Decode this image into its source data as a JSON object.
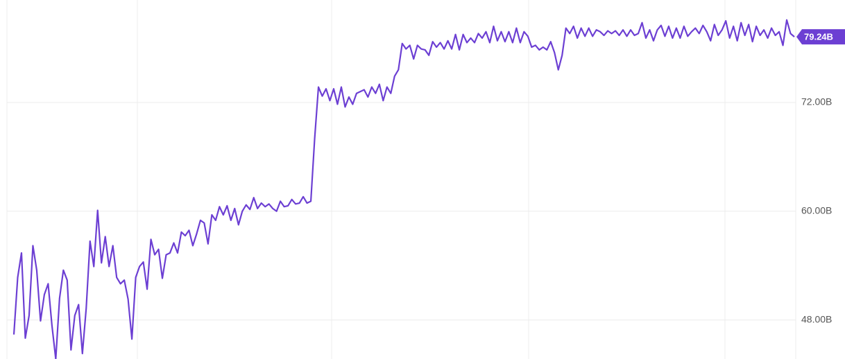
{
  "chart_data": {
    "type": "line",
    "color": "#6c3fd3",
    "ylim": [
      43.7,
      83.3
    ],
    "yticks": [
      {
        "value": 48,
        "label": "48.00B"
      },
      {
        "value": 60,
        "label": "60.00B"
      },
      {
        "value": 72,
        "label": "72.00B"
      }
    ],
    "grid": true,
    "values": [
      46.4,
      52.7,
      55.4,
      46.0,
      48.5,
      56.2,
      53.5,
      47.9,
      50.8,
      52.0,
      47.4,
      43.7,
      50.4,
      53.5,
      52.4,
      44.7,
      48.5,
      49.7,
      44.3,
      49.3,
      56.7,
      53.9,
      60.1,
      54.3,
      57.2,
      53.9,
      56.2,
      52.7,
      52.0,
      52.4,
      50.3,
      45.9,
      52.7,
      53.9,
      54.4,
      51.4,
      56.9,
      55.2,
      55.8,
      52.6,
      55.2,
      55.4,
      56.5,
      55.4,
      57.7,
      57.3,
      57.9,
      56.2,
      57.5,
      59.0,
      58.7,
      56.4,
      59.6,
      59.0,
      60.5,
      59.6,
      60.6,
      59.0,
      60.3,
      58.5,
      60.0,
      60.7,
      60.2,
      61.5,
      60.3,
      60.9,
      60.5,
      60.8,
      60.3,
      60.0,
      61.1,
      60.5,
      60.6,
      61.3,
      60.8,
      60.9,
      61.6,
      60.9,
      61.1,
      68.0,
      73.7,
      72.7,
      73.5,
      72.2,
      73.5,
      71.8,
      73.7,
      71.5,
      72.6,
      71.8,
      73.0,
      73.2,
      73.4,
      72.6,
      73.7,
      73.0,
      74.0,
      72.2,
      73.7,
      73.0,
      74.9,
      75.6,
      78.5,
      77.9,
      78.3,
      76.8,
      78.3,
      77.9,
      77.8,
      77.2,
      78.7,
      78.1,
      78.6,
      77.9,
      78.8,
      77.9,
      79.5,
      77.8,
      79.5,
      78.6,
      79.1,
      78.6,
      79.6,
      79.1,
      79.8,
      78.6,
      80.4,
      78.8,
      79.8,
      78.7,
      79.8,
      78.6,
      80.2,
      78.6,
      79.8,
      79.3,
      78.1,
      78.3,
      77.8,
      78.1,
      77.8,
      78.7,
      77.5,
      75.6,
      77.2,
      80.2,
      79.6,
      80.4,
      79.1,
      80.2,
      79.3,
      80.2,
      79.3,
      80.0,
      79.8,
      79.4,
      79.9,
      79.6,
      79.9,
      79.4,
      80.0,
      79.3,
      80.0,
      79.4,
      79.6,
      80.8,
      79.1,
      80.0,
      78.8,
      80.0,
      80.5,
      79.3,
      80.4,
      79.1,
      80.2,
      79.1,
      80.4,
      79.3,
      79.8,
      80.2,
      79.6,
      80.5,
      79.8,
      78.8,
      80.6,
      79.4,
      80.0,
      81.0,
      79.1,
      80.4,
      78.8,
      80.8,
      79.4,
      80.6,
      78.7,
      80.4,
      79.4,
      80.0,
      79.1,
      80.2,
      79.4,
      79.8,
      78.3,
      81.1,
      79.6,
      79.24
    ],
    "value_labels": [
      null,
      null,
      null,
      null,
      null,
      null,
      null,
      null,
      null,
      null,
      null,
      null,
      null,
      null,
      null,
      null,
      null,
      null,
      null,
      null,
      null,
      null,
      null,
      null,
      null,
      null,
      null,
      null,
      null,
      null,
      null,
      null,
      null,
      null,
      null,
      null,
      null,
      null,
      null,
      null,
      null,
      null,
      null,
      null,
      null,
      null,
      null,
      null,
      null,
      null,
      null,
      null,
      null,
      null,
      null,
      null,
      null,
      null,
      null,
      null,
      null,
      null,
      null,
      null,
      null,
      null,
      null,
      null,
      null,
      null,
      null,
      null,
      null,
      null,
      null,
      null,
      null,
      null,
      null,
      null,
      null,
      null,
      null,
      null,
      null,
      null,
      null,
      null,
      null,
      null,
      null,
      null,
      null,
      null,
      null,
      null,
      null,
      null,
      null,
      null,
      null,
      null,
      null,
      null,
      null,
      null,
      null,
      null,
      null,
      null,
      null,
      null,
      null,
      null,
      null,
      null,
      null,
      null,
      null,
      null,
      null,
      null,
      null,
      null,
      null,
      null,
      null,
      null,
      null,
      null,
      null,
      null,
      null,
      null,
      null,
      null,
      null,
      null,
      null,
      null,
      null,
      null,
      null,
      null,
      null,
      null,
      null,
      null,
      null,
      null,
      null,
      null,
      null,
      null,
      null,
      null,
      null,
      null,
      null,
      null,
      null,
      null,
      null,
      null,
      null,
      null,
      null,
      null,
      null,
      null,
      null,
      null,
      null,
      null,
      null,
      null,
      null,
      null,
      null,
      null,
      null,
      null,
      null,
      null,
      null,
      null,
      null,
      null,
      null,
      null,
      null,
      null,
      null,
      null,
      null,
      null,
      null,
      null,
      null,
      null,
      null,
      null,
      null,
      null,
      null,
      "79.24B"
    ]
  }
}
